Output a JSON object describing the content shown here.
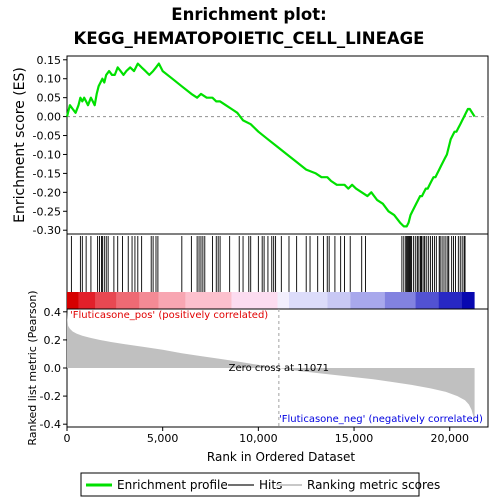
{
  "title_line1": "Enrichment plot:",
  "title_line2": "KEGG_HEMATOPOIETIC_CELL_LINEAGE",
  "chart_data": [
    {
      "type": "line",
      "name": "enrichment-plot",
      "ylabel": "Enrichment score (ES)",
      "ylim": [
        -0.31,
        0.16
      ],
      "yticks": [
        0.15,
        0.1,
        0.05,
        0.0,
        -0.05,
        -0.1,
        -0.15,
        -0.2,
        -0.25,
        -0.3
      ],
      "ytick_labels": [
        "0.15",
        "0.10",
        "0.05",
        "0.00",
        "-0.05",
        "-0.10",
        "-0.15",
        "-0.20",
        "-0.25",
        "-0.30"
      ],
      "xlim": [
        0,
        22000
      ],
      "line_color": "#00e000",
      "series": [
        {
          "name": "Enrichment profile",
          "x": [
            0,
            150,
            300,
            450,
            600,
            700,
            800,
            900,
            1000,
            1100,
            1250,
            1350,
            1450,
            1550,
            1650,
            1750,
            1850,
            1950,
            2050,
            2200,
            2350,
            2500,
            2650,
            2800,
            2950,
            3100,
            3300,
            3500,
            3700,
            3900,
            4100,
            4300,
            4500,
            4650,
            4800,
            5000,
            5500,
            6000,
            6500,
            6800,
            7000,
            7300,
            7600,
            7800,
            8000,
            8300,
            8600,
            8900,
            9200,
            9600,
            10000,
            10500,
            11000,
            11500,
            12000,
            12500,
            13000,
            13300,
            13600,
            13800,
            14100,
            14300,
            14500,
            14700,
            14900,
            15100,
            15400,
            15700,
            15900,
            16200,
            16500,
            16800,
            17100,
            17400,
            17600,
            17750,
            17850,
            17950,
            18050,
            18150,
            18250,
            18350,
            18450,
            18550,
            18650,
            18750,
            18850,
            18950,
            19050,
            19150,
            19250,
            19350,
            19450,
            19550,
            19650,
            19750,
            19850,
            19950,
            20050,
            20150,
            20250,
            20350,
            20450,
            20550,
            20650,
            20750,
            20850,
            20950,
            21050,
            21300
          ],
          "y": [
            0.0,
            0.03,
            0.02,
            0.01,
            0.03,
            0.05,
            0.04,
            0.05,
            0.04,
            0.03,
            0.05,
            0.04,
            0.03,
            0.06,
            0.08,
            0.09,
            0.1,
            0.09,
            0.11,
            0.12,
            0.11,
            0.11,
            0.13,
            0.12,
            0.11,
            0.12,
            0.13,
            0.12,
            0.14,
            0.13,
            0.12,
            0.11,
            0.12,
            0.13,
            0.14,
            0.12,
            0.1,
            0.08,
            0.06,
            0.05,
            0.06,
            0.05,
            0.05,
            0.04,
            0.04,
            0.03,
            0.02,
            0.01,
            -0.01,
            -0.02,
            -0.04,
            -0.06,
            -0.08,
            -0.1,
            -0.12,
            -0.14,
            -0.15,
            -0.16,
            -0.16,
            -0.17,
            -0.18,
            -0.18,
            -0.18,
            -0.19,
            -0.18,
            -0.19,
            -0.2,
            -0.21,
            -0.2,
            -0.22,
            -0.23,
            -0.25,
            -0.26,
            -0.28,
            -0.29,
            -0.29,
            -0.28,
            -0.26,
            -0.25,
            -0.24,
            -0.23,
            -0.22,
            -0.21,
            -0.21,
            -0.2,
            -0.19,
            -0.19,
            -0.18,
            -0.17,
            -0.16,
            -0.16,
            -0.15,
            -0.14,
            -0.13,
            -0.12,
            -0.11,
            -0.1,
            -0.08,
            -0.06,
            -0.05,
            -0.04,
            -0.04,
            -0.03,
            -0.02,
            -0.01,
            0.0,
            0.01,
            0.02,
            0.02,
            0.0
          ]
        }
      ]
    },
    {
      "type": "hits",
      "name": "hit-ticks",
      "xlim": [
        0,
        22000
      ],
      "hits": [
        230,
        700,
        800,
        1000,
        1250,
        1600,
        1700,
        1800,
        1850,
        1950,
        2050,
        2150,
        2450,
        2650,
        2900,
        3200,
        3400,
        3550,
        3700,
        3900,
        4400,
        4500,
        4650,
        4750,
        6000,
        6500,
        6800,
        6900,
        7000,
        7100,
        7200,
        7600,
        7800,
        7900,
        8000,
        8500,
        9000,
        9200,
        9500,
        9600,
        10000,
        10200,
        10300,
        10500,
        10700,
        10800,
        10900,
        11200,
        11600,
        12000,
        12500,
        12700,
        13100,
        13400,
        13600,
        13700,
        14000,
        14300,
        14500,
        14800,
        15400,
        15600,
        17500,
        17600,
        17700,
        17750,
        17800,
        17850,
        17900,
        17950,
        18000,
        18100,
        18200,
        18300,
        18350,
        18450,
        18500,
        18550,
        18650,
        18700,
        18800,
        18900,
        19000,
        19100,
        19200,
        19300,
        19450,
        19500,
        19600,
        19700,
        19800,
        19900,
        19950,
        20100,
        20200,
        20300,
        20450,
        20550,
        20650,
        20750,
        20800
      ]
    },
    {
      "type": "heatmap",
      "name": "rank-color-bar",
      "xlim": [
        0,
        22000
      ],
      "segments": [
        {
          "x0": 0,
          "x1": 600,
          "color": "#d60000"
        },
        {
          "x0": 600,
          "x1": 1500,
          "color": "#e2202a"
        },
        {
          "x0": 1500,
          "x1": 2600,
          "color": "#e84852"
        },
        {
          "x0": 2600,
          "x1": 3800,
          "color": "#ee6a74"
        },
        {
          "x0": 3800,
          "x1": 4800,
          "color": "#f48a95"
        },
        {
          "x0": 4800,
          "x1": 6200,
          "color": "#f8a6b2"
        },
        {
          "x0": 6200,
          "x1": 8600,
          "color": "#fcc0cd"
        },
        {
          "x0": 8600,
          "x1": 11000,
          "color": "#fcdcf0"
        },
        {
          "x0": 11000,
          "x1": 11600,
          "color": "#f2eefc"
        },
        {
          "x0": 11600,
          "x1": 13600,
          "color": "#dcdcfa"
        },
        {
          "x0": 13600,
          "x1": 14800,
          "color": "#c8c8f4"
        },
        {
          "x0": 14800,
          "x1": 16600,
          "color": "#a8a8ec"
        },
        {
          "x0": 16600,
          "x1": 18200,
          "color": "#8282e0"
        },
        {
          "x0": 18200,
          "x1": 19400,
          "color": "#5252d2"
        },
        {
          "x0": 19400,
          "x1": 20600,
          "color": "#2828c4"
        },
        {
          "x0": 20600,
          "x1": 21300,
          "color": "#0808b0"
        }
      ]
    },
    {
      "type": "area",
      "name": "ranked-list-metric",
      "ylabel": "Ranked list metric (Pearson)",
      "xlabel": "Rank in Ordered Dataset",
      "ylim": [
        -0.42,
        0.42
      ],
      "yticks": [
        0.4,
        0.2,
        0.0,
        -0.2,
        -0.4
      ],
      "ytick_labels": [
        "0.4",
        "0.2",
        "0.0",
        "-0.2",
        "-0.4"
      ],
      "xlim": [
        0,
        22000
      ],
      "xticks": [
        0,
        5000,
        10000,
        15000,
        20000
      ],
      "xtick_labels": [
        "0",
        "5,000",
        "10,000",
        "15,000",
        "20,000"
      ],
      "fill_color": "#c0c0c0",
      "x": [
        0,
        20,
        60,
        150,
        300,
        500,
        800,
        1200,
        1700,
        2300,
        3000,
        4000,
        5000,
        6000,
        7000,
        8000,
        9000,
        10000,
        11071,
        12000,
        13000,
        14000,
        15000,
        16000,
        17000,
        18000,
        19000,
        19800,
        20400,
        20800,
        21000,
        21150,
        21250,
        21300
      ],
      "y": [
        0.4,
        0.35,
        0.3,
        0.28,
        0.26,
        0.245,
        0.23,
        0.215,
        0.2,
        0.185,
        0.17,
        0.15,
        0.13,
        0.105,
        0.085,
        0.065,
        0.045,
        0.022,
        0.0,
        -0.02,
        -0.035,
        -0.05,
        -0.065,
        -0.08,
        -0.1,
        -0.12,
        -0.145,
        -0.17,
        -0.2,
        -0.23,
        -0.26,
        -0.3,
        -0.35,
        -0.38
      ],
      "zero_cross_label": "Zero cross at 11071",
      "zero_cross_x": 11071,
      "pos_label": "'Fluticasone_pos' (positively correlated)",
      "neg_label": "'Fluticasone_neg' (negatively correlated)",
      "pos_color": "#e00000",
      "neg_color": "#0000e0"
    }
  ],
  "legend": {
    "items": [
      {
        "label": "Enrichment profile",
        "color": "#00e000",
        "kind": "thick-line"
      },
      {
        "label": "Hits",
        "color": "#707070",
        "kind": "line"
      },
      {
        "label": "Ranking metric scores",
        "color": "#c8c8c8",
        "kind": "line"
      }
    ]
  }
}
